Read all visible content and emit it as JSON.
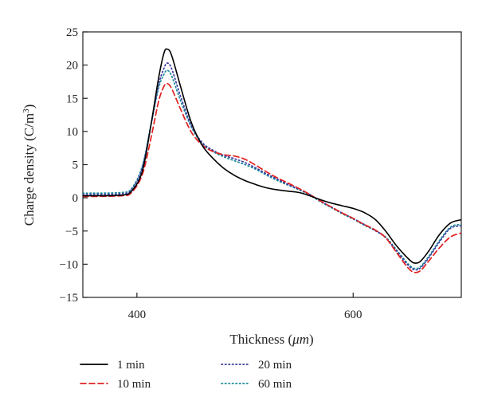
{
  "chart_data": {
    "type": "line",
    "xlabel_prefix": "Thickness (",
    "xlabel_unit": "μm",
    "xlabel_suffix": ")",
    "ylabel_prefix": "Charge density (C/m",
    "ylabel_exp": "3",
    "ylabel_suffix": ")",
    "xlim": [
      350,
      700
    ],
    "ylim": [
      -15,
      25
    ],
    "xticks": [
      400,
      600
    ],
    "yticks": [
      -15,
      -10,
      -5,
      0,
      5,
      10,
      15,
      20,
      25
    ],
    "grid": false,
    "legend_position": "bottom",
    "series": [
      {
        "name": "1 min",
        "color": "#000000",
        "dash": "solid",
        "points": [
          [
            350,
            0.3
          ],
          [
            385,
            0.4
          ],
          [
            395,
            1.0
          ],
          [
            405,
            4
          ],
          [
            413,
            11
          ],
          [
            420,
            18
          ],
          [
            425,
            21.8
          ],
          [
            428,
            22.4
          ],
          [
            432,
            21.5
          ],
          [
            440,
            17
          ],
          [
            450,
            11.5
          ],
          [
            460,
            8.0
          ],
          [
            470,
            6.0
          ],
          [
            480,
            4.5
          ],
          [
            490,
            3.4
          ],
          [
            500,
            2.6
          ],
          [
            510,
            2.0
          ],
          [
            520,
            1.5
          ],
          [
            530,
            1.2
          ],
          [
            540,
            1.0
          ],
          [
            550,
            0.8
          ],
          [
            560,
            0.3
          ],
          [
            570,
            -0.3
          ],
          [
            580,
            -0.8
          ],
          [
            590,
            -1.2
          ],
          [
            600,
            -1.6
          ],
          [
            610,
            -2.2
          ],
          [
            620,
            -3.2
          ],
          [
            630,
            -5.0
          ],
          [
            640,
            -7.2
          ],
          [
            650,
            -9.0
          ],
          [
            656,
            -9.8
          ],
          [
            662,
            -9.6
          ],
          [
            670,
            -8.0
          ],
          [
            680,
            -5.5
          ],
          [
            690,
            -3.8
          ],
          [
            700,
            -3.3
          ]
        ]
      },
      {
        "name": "10 min",
        "color": "#e02020",
        "dash": "dashed",
        "points": [
          [
            350,
            0.2
          ],
          [
            385,
            0.3
          ],
          [
            395,
            0.8
          ],
          [
            405,
            3.5
          ],
          [
            413,
            9
          ],
          [
            420,
            14.5
          ],
          [
            425,
            16.8
          ],
          [
            428,
            17.2
          ],
          [
            432,
            16.5
          ],
          [
            440,
            13.5
          ],
          [
            450,
            10.0
          ],
          [
            460,
            8.0
          ],
          [
            470,
            7.0
          ],
          [
            480,
            6.5
          ],
          [
            490,
            6.3
          ],
          [
            500,
            5.8
          ],
          [
            510,
            4.9
          ],
          [
            520,
            3.9
          ],
          [
            530,
            3.0
          ],
          [
            540,
            2.2
          ],
          [
            550,
            1.4
          ],
          [
            560,
            0.5
          ],
          [
            570,
            -0.5
          ],
          [
            580,
            -1.4
          ],
          [
            590,
            -2.3
          ],
          [
            600,
            -3.1
          ],
          [
            610,
            -4.0
          ],
          [
            620,
            -4.8
          ],
          [
            630,
            -6.0
          ],
          [
            640,
            -8.2
          ],
          [
            650,
            -10.4
          ],
          [
            656,
            -11.2
          ],
          [
            662,
            -11.0
          ],
          [
            670,
            -9.5
          ],
          [
            680,
            -7.5
          ],
          [
            690,
            -5.9
          ],
          [
            700,
            -5.3
          ]
        ]
      },
      {
        "name": "20 min",
        "color": "#3a3aa0",
        "dash": "dotted",
        "points": [
          [
            350,
            0.5
          ],
          [
            385,
            0.6
          ],
          [
            395,
            1.2
          ],
          [
            405,
            4.5
          ],
          [
            413,
            11
          ],
          [
            420,
            17
          ],
          [
            425,
            19.5
          ],
          [
            428,
            20.3
          ],
          [
            432,
            19.5
          ],
          [
            440,
            15.5
          ],
          [
            450,
            11.0
          ],
          [
            460,
            8.4
          ],
          [
            470,
            7.2
          ],
          [
            480,
            6.4
          ],
          [
            490,
            5.9
          ],
          [
            500,
            5.3
          ],
          [
            510,
            4.5
          ],
          [
            520,
            3.6
          ],
          [
            530,
            2.8
          ],
          [
            540,
            2.0
          ],
          [
            550,
            1.3
          ],
          [
            560,
            0.5
          ],
          [
            570,
            -0.5
          ],
          [
            580,
            -1.4
          ],
          [
            590,
            -2.3
          ],
          [
            600,
            -3.1
          ],
          [
            610,
            -4.0
          ],
          [
            620,
            -4.9
          ],
          [
            630,
            -6.0
          ],
          [
            640,
            -8.0
          ],
          [
            650,
            -10.0
          ],
          [
            656,
            -10.8
          ],
          [
            662,
            -10.6
          ],
          [
            670,
            -9.0
          ],
          [
            680,
            -6.6
          ],
          [
            690,
            -4.6
          ],
          [
            700,
            -4.2
          ]
        ]
      },
      {
        "name": "60 min",
        "color": "#1a8a9a",
        "dash": "dotted",
        "points": [
          [
            350,
            0.7
          ],
          [
            385,
            0.8
          ],
          [
            395,
            1.4
          ],
          [
            405,
            4.8
          ],
          [
            413,
            11
          ],
          [
            420,
            16.5
          ],
          [
            425,
            18.6
          ],
          [
            428,
            19.2
          ],
          [
            432,
            18.4
          ],
          [
            440,
            14.8
          ],
          [
            450,
            10.8
          ],
          [
            460,
            8.2
          ],
          [
            470,
            7.0
          ],
          [
            480,
            6.2
          ],
          [
            490,
            5.6
          ],
          [
            500,
            5.0
          ],
          [
            510,
            4.3
          ],
          [
            520,
            3.4
          ],
          [
            530,
            2.6
          ],
          [
            540,
            1.9
          ],
          [
            550,
            1.2
          ],
          [
            560,
            0.4
          ],
          [
            570,
            -0.6
          ],
          [
            580,
            -1.5
          ],
          [
            590,
            -2.4
          ],
          [
            600,
            -3.2
          ],
          [
            610,
            -4.1
          ],
          [
            620,
            -4.9
          ],
          [
            630,
            -5.9
          ],
          [
            640,
            -7.8
          ],
          [
            650,
            -9.8
          ],
          [
            656,
            -10.6
          ],
          [
            662,
            -10.4
          ],
          [
            670,
            -8.8
          ],
          [
            680,
            -6.4
          ],
          [
            690,
            -4.4
          ],
          [
            700,
            -4.0
          ]
        ]
      }
    ]
  }
}
